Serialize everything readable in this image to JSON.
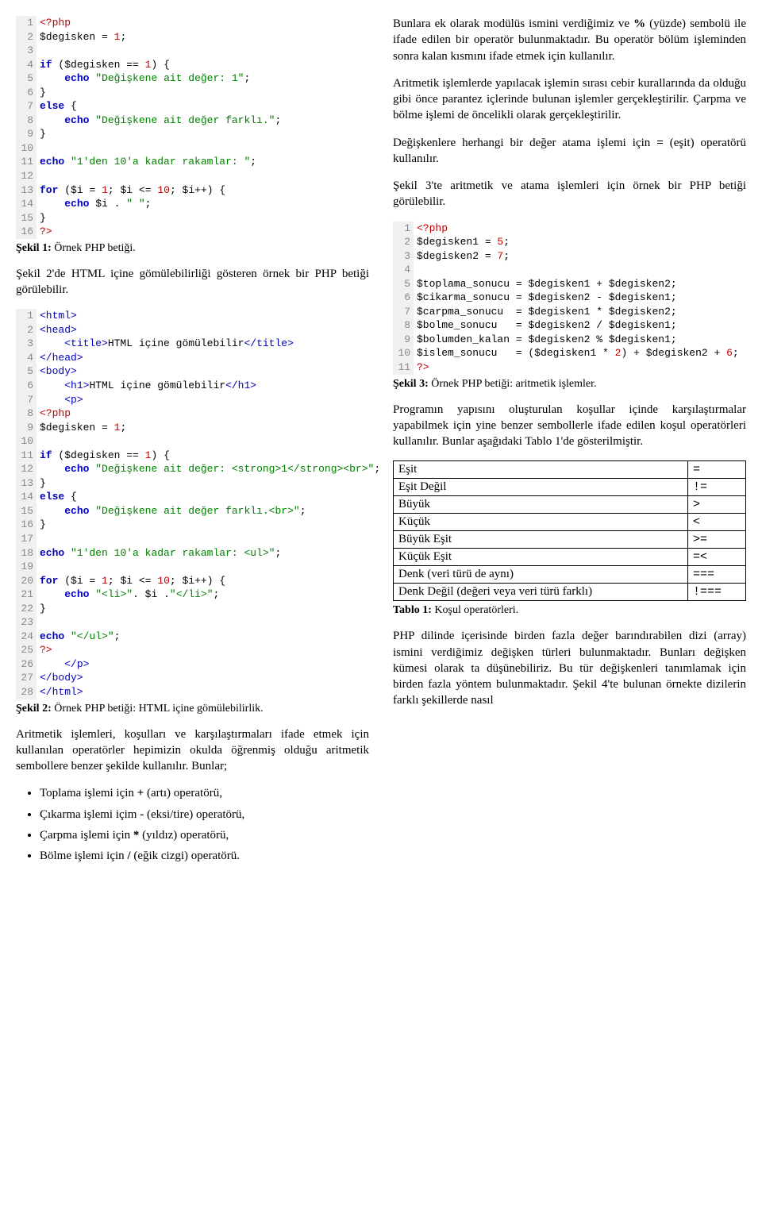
{
  "left": {
    "code1": {
      "lines": [
        {
          "n": 1,
          "html": "<span class='ptag'>&lt;?php</span>"
        },
        {
          "n": 2,
          "html": "<span class='var'>$degisken</span> <span class='op'>=</span> <span class='num'>1</span>;"
        },
        {
          "n": 3,
          "html": ""
        },
        {
          "n": 4,
          "html": "<span class='kw'>if</span> (<span class='var'>$degisken</span> <span class='op'>==</span> <span class='num'>1</span>) {"
        },
        {
          "n": 5,
          "html": "    <span class='kw'>echo</span> <span class='str'>\"Değişkene ait değer: 1\"</span>;"
        },
        {
          "n": 6,
          "html": "}"
        },
        {
          "n": 7,
          "html": "<span class='kw'>else</span> {"
        },
        {
          "n": 8,
          "html": "    <span class='kw'>echo</span> <span class='str'>\"Değişkene ait değer farklı.\"</span>;"
        },
        {
          "n": 9,
          "html": "}"
        },
        {
          "n": 10,
          "html": ""
        },
        {
          "n": 11,
          "html": "<span class='kw'>echo</span> <span class='str'>\"1'den 10'a kadar rakamlar: \"</span>;"
        },
        {
          "n": 12,
          "html": ""
        },
        {
          "n": 13,
          "html": "<span class='kw'>for</span> (<span class='var'>$i</span> <span class='op'>=</span> <span class='num'>1</span>; <span class='var'>$i</span> <span class='op'>&lt;=</span> <span class='num'>10</span>; <span class='var'>$i++</span>) {"
        },
        {
          "n": 14,
          "html": "    <span class='kw'>echo</span> <span class='var'>$i</span> . <span class='str'>\" \"</span>;"
        },
        {
          "n": 15,
          "html": "}"
        },
        {
          "n": 16,
          "html": "<span class='ptag'>?&gt;</span>"
        }
      ]
    },
    "cap1_bold": "Şekil 1:",
    "cap1_text": " Örnek PHP betiği.",
    "para1": "Şekil 2'de HTML içine gömülebilirliği gösteren örnek bir PHP betiği görülebilir.",
    "code2": {
      "lines": [
        {
          "n": 1,
          "html": "<span class='tag'>&lt;html&gt;</span>"
        },
        {
          "n": 2,
          "html": "<span class='tag'>&lt;head&gt;</span>"
        },
        {
          "n": 3,
          "html": "    <span class='tag'>&lt;title&gt;</span>HTML içine gömülebilir<span class='tag'>&lt;/title&gt;</span>"
        },
        {
          "n": 4,
          "html": "<span class='tag'>&lt;/head&gt;</span>"
        },
        {
          "n": 5,
          "html": "<span class='tag'>&lt;body&gt;</span>"
        },
        {
          "n": 6,
          "html": "    <span class='tag'>&lt;h1&gt;</span>HTML içine gömülebilir<span class='tag'>&lt;/h1&gt;</span>"
        },
        {
          "n": 7,
          "html": "    <span class='tag'>&lt;p&gt;</span>"
        },
        {
          "n": 8,
          "html": "<span class='ptag'>&lt;?php</span>"
        },
        {
          "n": 9,
          "html": "<span class='var'>$degisken</span> = <span class='num'>1</span>;"
        },
        {
          "n": 10,
          "html": ""
        },
        {
          "n": 11,
          "html": "<span class='kw'>if</span> (<span class='var'>$degisken</span> == <span class='num'>1</span>) {"
        },
        {
          "n": 12,
          "html": "    <span class='kw'>echo</span> <span class='str'>\"Değişkene ait değer: &lt;strong&gt;1&lt;/strong&gt;&lt;br&gt;\"</span>;"
        },
        {
          "n": 13,
          "html": "}"
        },
        {
          "n": 14,
          "html": "<span class='kw'>else</span> {"
        },
        {
          "n": 15,
          "html": "    <span class='kw'>echo</span> <span class='str'>\"Değişkene ait değer farklı.&lt;br&gt;\"</span>;"
        },
        {
          "n": 16,
          "html": "}"
        },
        {
          "n": 17,
          "html": ""
        },
        {
          "n": 18,
          "html": "<span class='kw'>echo</span> <span class='str'>\"1'den 10'a kadar rakamlar: &lt;ul&gt;\"</span>;"
        },
        {
          "n": 19,
          "html": ""
        },
        {
          "n": 20,
          "html": "<span class='kw'>for</span> (<span class='var'>$i</span> = <span class='num'>1</span>; <span class='var'>$i</span> &lt;= <span class='num'>10</span>; <span class='var'>$i++</span>) {"
        },
        {
          "n": 21,
          "html": "    <span class='kw'>echo</span> <span class='str'>\"&lt;li&gt;\"</span>. <span class='var'>$i</span> .<span class='str'>\"&lt;/li&gt;\"</span>;"
        },
        {
          "n": 22,
          "html": "}"
        },
        {
          "n": 23,
          "html": ""
        },
        {
          "n": 24,
          "html": "<span class='kw'>echo</span> <span class='str'>\"&lt;/ul&gt;\"</span>;"
        },
        {
          "n": 25,
          "html": "<span class='ptag'>?&gt;</span>"
        },
        {
          "n": 26,
          "html": "    <span class='tag'>&lt;/p&gt;</span>"
        },
        {
          "n": 27,
          "html": "<span class='tag'>&lt;/body&gt;</span>"
        },
        {
          "n": 28,
          "html": "<span class='tag'>&lt;/html&gt;</span>"
        }
      ]
    },
    "cap2_bold": "Şekil 2:",
    "cap2_text": " Örnek PHP betiği: HTML içine gömülebilirlik.",
    "para2": "Aritmetik işlemleri, koşulları ve karşılaştırmaları ifade etmek için kullanılan operatörler hepimizin okulda öğrenmiş olduğu aritmetik sembollere benzer şekilde kullanılır. Bunlar;",
    "bullets": [
      {
        "pre": "Toplama işlemi için ",
        "b": "+",
        "post": " (artı) operatörü,"
      },
      {
        "pre": "Çıkarma işlemi içim ",
        "b": "-",
        "post": " (eksi/tire) operatörü,"
      },
      {
        "pre": "Çarpma işlemi için ",
        "b": "*",
        "post": " (yıldız) operatörü,"
      },
      {
        "pre": "Bölme işlemi için ",
        "b": "/",
        "post": " (eğik cizgi) operatörü."
      }
    ]
  },
  "right": {
    "para1_a": "Bunlara ek olarak modülüs ismini verdiğimiz ve ",
    "para1_b": "%",
    "para1_c": " (yüzde) sembolü ile ifade edilen bir operatör bulunmaktadır. Bu operatör bölüm işleminden sonra kalan kısmını ifade etmek için kullanılır.",
    "para2": "Aritmetik işlemlerde yapılacak işlemin sırası cebir kurallarında da olduğu gibi önce parantez içlerinde bulunan işlemler gerçekleştirilir. Çarpma ve bölme işlemi de öncelikli olarak gerçekleştirilir.",
    "para3_a": "Değişkenlere herhangi bir değer atama işlemi için ",
    "para3_b": "=",
    "para3_c": " (eşit) operatörü kullanılır.",
    "para4": "Şekil 3'te aritmetik ve atama işlemleri için örnek bir PHP betiği görülebilir.",
    "code3": {
      "lines": [
        {
          "n": 1,
          "html": "<span class='ptag'>&lt;?php</span>"
        },
        {
          "n": 2,
          "html": "<span class='var'>$degisken1</span> = <span class='num'>5</span>;"
        },
        {
          "n": 3,
          "html": "<span class='var'>$degisken2</span> = <span class='num'>7</span>;"
        },
        {
          "n": 4,
          "html": ""
        },
        {
          "n": 5,
          "html": "<span class='var'>$toplama_sonucu</span> = <span class='var'>$degisken1</span> + <span class='var'>$degisken2</span>;"
        },
        {
          "n": 6,
          "html": "<span class='var'>$cikarma_sonucu</span> = <span class='var'>$degisken2</span> - <span class='var'>$degisken1</span>;"
        },
        {
          "n": 7,
          "html": "<span class='var'>$carpma_sonucu</span>  = <span class='var'>$degisken1</span> * <span class='var'>$degisken2</span>;"
        },
        {
          "n": 8,
          "html": "<span class='var'>$bolme_sonucu</span>   = <span class='var'>$degisken2</span> / <span class='var'>$degisken1</span>;"
        },
        {
          "n": 9,
          "html": "<span class='var'>$bolumden_kalan</span> = <span class='var'>$degisken2</span> % <span class='var'>$degisken1</span>;"
        },
        {
          "n": 10,
          "html": "<span class='var'>$islem_sonucu</span>   = (<span class='var'>$degisken1</span> * <span class='num'>2</span>) + <span class='var'>$degisken2</span> + <span class='num'>6</span>;"
        },
        {
          "n": 11,
          "html": "<span class='ptag'>?&gt;</span>"
        }
      ]
    },
    "cap3_bold": "Şekil 3:",
    "cap3_text": " Örnek PHP betiği: aritmetik işlemler.",
    "para5": "Programın yapısını oluşturulan koşullar içinde karşılaştırmalar yapabilmek için yine benzer sembollerle ifade edilen koşul operatörleri kullanılır. Bunlar aşağıdaki Tablo 1'de gösterilmiştir.",
    "table": {
      "rows": [
        {
          "name": "Eşit",
          "sym": "="
        },
        {
          "name": "Eşit Değil",
          "sym": "!="
        },
        {
          "name": "Büyük",
          "sym": ">"
        },
        {
          "name": "Küçük",
          "sym": "<"
        },
        {
          "name": "Büyük Eşit",
          "sym": ">="
        },
        {
          "name": "Küçük Eşit",
          "sym": "=<"
        },
        {
          "name": "Denk (veri türü de aynı)",
          "sym": "==="
        },
        {
          "name": "Denk Değil (değeri veya veri türü farklı)",
          "sym": "!==="
        }
      ]
    },
    "tabcap_bold": "Tablo 1:",
    "tabcap_text": " Koşul operatörleri.",
    "para6": "PHP dilinde içerisinde birden fazla değer barındırabilen dizi (array) ismini verdiğimiz değişken türleri bulunmaktadır. Bunları değişken kümesi olarak ta düşünebiliriz. Bu tür değişkenleri tanımlamak için birden fazla yöntem bulunmaktadır. Şekil 4'te bulunan örnekte dizilerin farklı şekillerde nasıl"
  }
}
